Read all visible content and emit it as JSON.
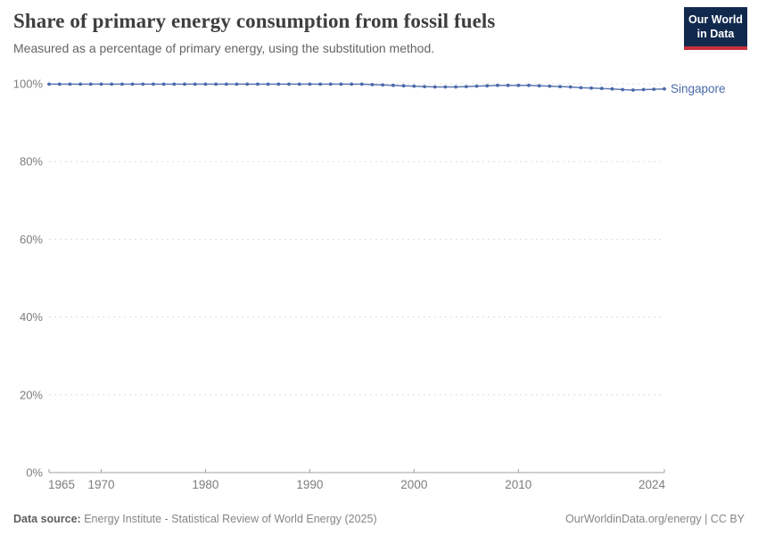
{
  "header": {
    "title": "Share of primary energy consumption from fossil fuels",
    "subtitle": "Measured as a percentage of primary energy, using the substitution method.",
    "logo": {
      "line1": "Our World",
      "line2": "in Data"
    }
  },
  "chart_data": {
    "type": "line",
    "title": "Share of primary energy consumption from fossil fuels",
    "subtitle": "Measured as a percentage of primary energy, using the substitution method.",
    "xlabel": "",
    "ylabel": "",
    "xlim": [
      1965,
      2024
    ],
    "ylim": [
      0,
      100
    ],
    "yticks": [
      0,
      20,
      40,
      60,
      80,
      100
    ],
    "ytick_suffix": "%",
    "xticks": [
      1965,
      1970,
      1980,
      1990,
      2000,
      2010,
      2024
    ],
    "grid": "dashed-horizontal",
    "legend_position": "line-end-label",
    "series": [
      {
        "name": "Singapore",
        "color": "#4a69a8",
        "x": [
          1965,
          1966,
          1967,
          1968,
          1969,
          1970,
          1971,
          1972,
          1973,
          1974,
          1975,
          1976,
          1977,
          1978,
          1979,
          1980,
          1981,
          1982,
          1983,
          1984,
          1985,
          1986,
          1987,
          1988,
          1989,
          1990,
          1991,
          1992,
          1993,
          1994,
          1995,
          1996,
          1997,
          1998,
          1999,
          2000,
          2001,
          2002,
          2003,
          2004,
          2005,
          2006,
          2007,
          2008,
          2009,
          2010,
          2011,
          2012,
          2013,
          2014,
          2015,
          2016,
          2017,
          2018,
          2019,
          2020,
          2021,
          2022,
          2023,
          2024
        ],
        "values": [
          99.9,
          99.9,
          99.9,
          99.9,
          99.9,
          99.9,
          99.9,
          99.9,
          99.9,
          99.9,
          99.9,
          99.9,
          99.9,
          99.9,
          99.9,
          99.9,
          99.9,
          99.9,
          99.9,
          99.9,
          99.9,
          99.9,
          99.9,
          99.9,
          99.9,
          99.9,
          99.9,
          99.9,
          99.9,
          99.9,
          99.9,
          99.8,
          99.7,
          99.6,
          99.5,
          99.4,
          99.3,
          99.2,
          99.2,
          99.2,
          99.3,
          99.4,
          99.5,
          99.6,
          99.6,
          99.6,
          99.6,
          99.5,
          99.4,
          99.3,
          99.2,
          99.0,
          98.9,
          98.8,
          98.7,
          98.5,
          98.4,
          98.5,
          98.6,
          98.7
        ]
      }
    ]
  },
  "footer": {
    "datasource_label": "Data source:",
    "datasource_text": "Energy Institute - Statistical Review of World Energy (2025)",
    "attribution": "OurWorldinData.org/energy | CC BY"
  },
  "colors": {
    "series_blue": "#4a69a8",
    "gridline": "#dddddd",
    "axis": "#a1a1a1",
    "tick_label": "#7d7d7d",
    "logo_bg": "#12294e",
    "logo_red": "#c5303c"
  }
}
